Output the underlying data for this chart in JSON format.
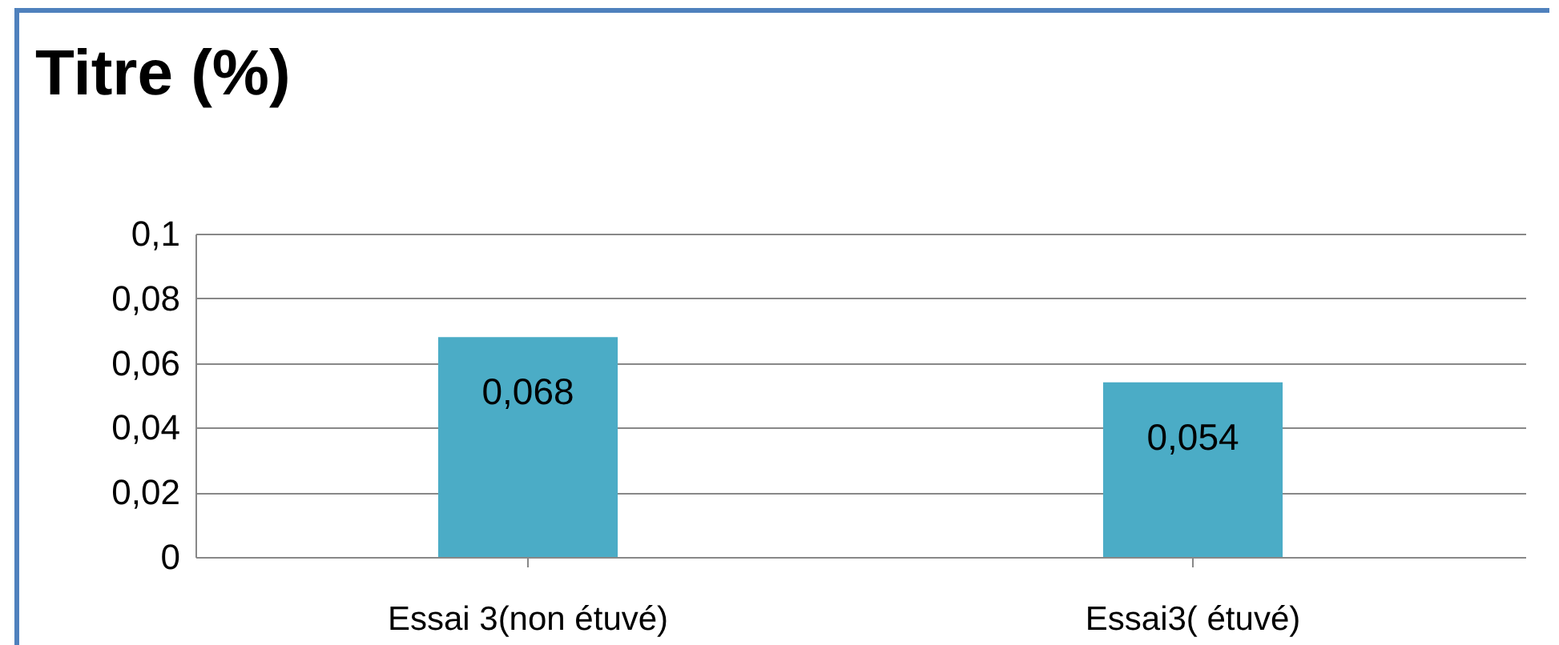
{
  "chart_data": {
    "type": "bar",
    "title": "Titre (%)",
    "categories": [
      "Essai 3(non étuvé)",
      "Essai3( étuvé)"
    ],
    "values": [
      0.068,
      0.054
    ],
    "color": "#4bacc6",
    "value_labels": [
      "0,068",
      "0,054"
    ],
    "ylim": [
      0,
      0.1
    ],
    "yticks": [
      {
        "value": 0,
        "label": "0"
      },
      {
        "value": 0.02,
        "label": "0,02"
      },
      {
        "value": 0.04,
        "label": "0,04"
      },
      {
        "value": 0.06,
        "label": "0,06"
      },
      {
        "value": 0.08,
        "label": "0,08"
      },
      {
        "value": 0.1,
        "label": "0,1"
      }
    ],
    "grid": "y"
  }
}
